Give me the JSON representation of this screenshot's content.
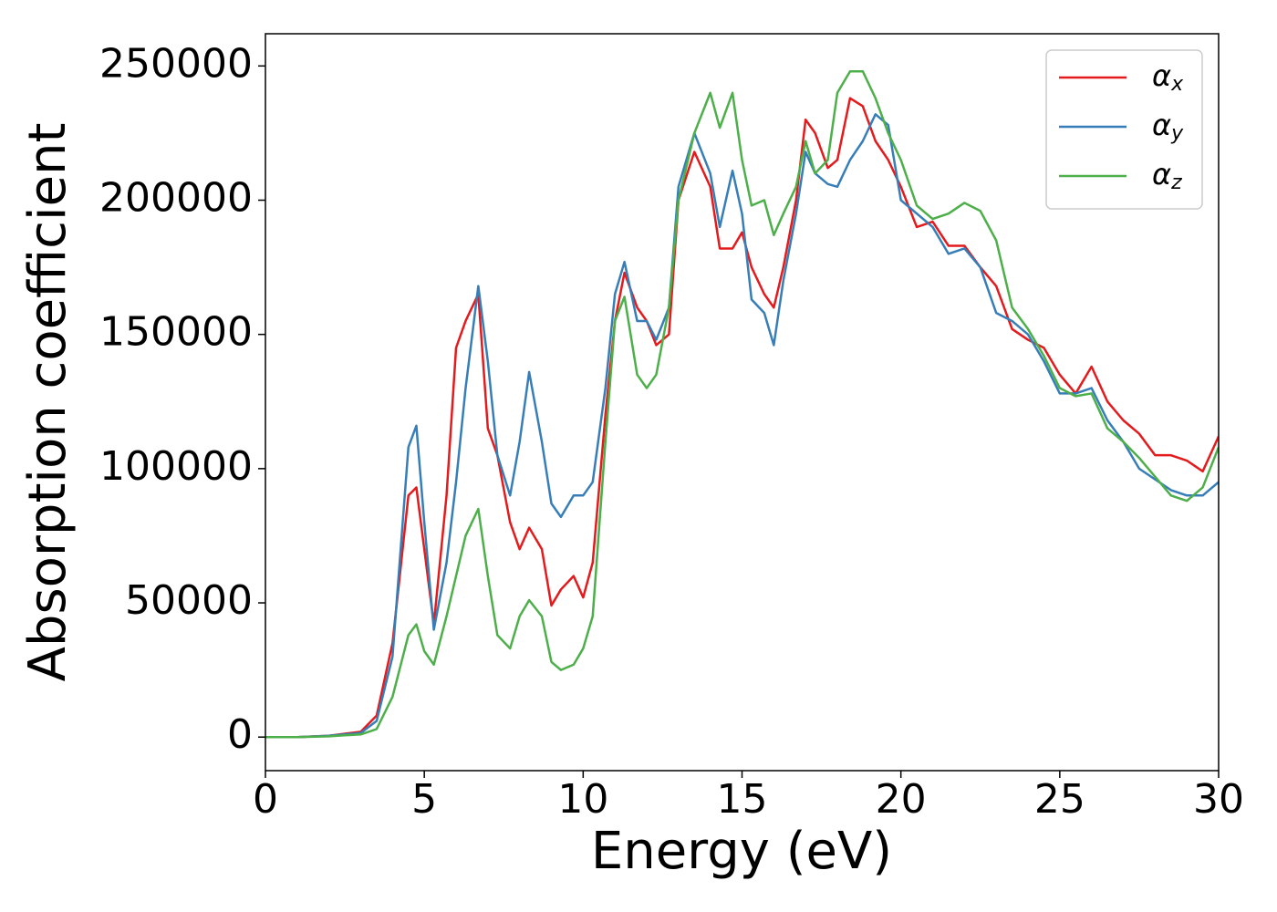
{
  "chart_data": {
    "type": "line",
    "xlabel": "Energy (eV)",
    "ylabel": "Absorption coefficient",
    "x": [
      0,
      1,
      2,
      3,
      3.5,
      4,
      4.5,
      4.75,
      5,
      5.3,
      5.7,
      6,
      6.3,
      6.7,
      7,
      7.3,
      7.7,
      8,
      8.3,
      8.7,
      9,
      9.3,
      9.7,
      10,
      10.3,
      10.7,
      11,
      11.3,
      11.7,
      12,
      12.3,
      12.7,
      13,
      13.5,
      14,
      14.3,
      14.7,
      15,
      15.3,
      15.7,
      16,
      16.3,
      16.7,
      17,
      17.3,
      17.7,
      18,
      18.4,
      18.8,
      19.2,
      19.6,
      20,
      20.5,
      21,
      21.5,
      22,
      22.5,
      23,
      23.5,
      24,
      24.5,
      25,
      25.5,
      26,
      26.5,
      27,
      27.5,
      28,
      28.5,
      29,
      29.5,
      30
    ],
    "series": [
      {
        "name": "αx",
        "color": "#e41a1c",
        "values": [
          0,
          0,
          500,
          2000,
          8000,
          35000,
          90000,
          93000,
          70000,
          42000,
          90000,
          145000,
          155000,
          165000,
          115000,
          105000,
          80000,
          70000,
          78000,
          70000,
          49000,
          55000,
          60000,
          52000,
          65000,
          120000,
          155000,
          173000,
          160000,
          155000,
          146000,
          150000,
          200000,
          218000,
          205000,
          182000,
          182000,
          188000,
          175000,
          165000,
          160000,
          175000,
          200000,
          230000,
          225000,
          212000,
          215000,
          238000,
          235000,
          222000,
          215000,
          205000,
          190000,
          192000,
          183000,
          183000,
          175000,
          168000,
          152000,
          148000,
          145000,
          135000,
          128000,
          138000,
          125000,
          118000,
          113000,
          105000,
          105000,
          103000,
          99000,
          112000
        ]
      },
      {
        "name": "αy",
        "color": "#377eb8",
        "values": [
          0,
          0,
          500,
          1500,
          6000,
          30000,
          108000,
          116000,
          80000,
          40000,
          65000,
          95000,
          130000,
          168000,
          140000,
          105000,
          90000,
          110000,
          136000,
          110000,
          87000,
          82000,
          90000,
          90000,
          95000,
          130000,
          165000,
          177000,
          155000,
          155000,
          148000,
          160000,
          205000,
          225000,
          210000,
          190000,
          211000,
          195000,
          163000,
          158000,
          146000,
          170000,
          195000,
          218000,
          210000,
          206000,
          205000,
          215000,
          222000,
          232000,
          228000,
          200000,
          195000,
          190000,
          180000,
          182000,
          175000,
          158000,
          155000,
          150000,
          140000,
          128000,
          128000,
          130000,
          118000,
          110000,
          100000,
          96000,
          92000,
          90000,
          90000,
          95000
        ]
      },
      {
        "name": "αz",
        "color": "#4daf4a",
        "values": [
          0,
          0,
          300,
          1000,
          3000,
          15000,
          38000,
          42000,
          32000,
          27000,
          45000,
          60000,
          75000,
          85000,
          60000,
          38000,
          33000,
          45000,
          51000,
          45000,
          28000,
          25000,
          27000,
          33000,
          45000,
          110000,
          155000,
          164000,
          135000,
          130000,
          135000,
          160000,
          200000,
          225000,
          240000,
          227000,
          240000,
          215000,
          198000,
          200000,
          187000,
          195000,
          205000,
          222000,
          210000,
          215000,
          240000,
          248000,
          248000,
          238000,
          225000,
          215000,
          198000,
          193000,
          195000,
          199000,
          196000,
          185000,
          160000,
          152000,
          142000,
          130000,
          127000,
          128000,
          115000,
          110000,
          104000,
          97000,
          90000,
          88000,
          93000,
          108000
        ]
      }
    ],
    "xlim": [
      0,
      30
    ],
    "xticks": [
      0,
      5,
      10,
      15,
      20,
      25,
      30
    ],
    "ylim": [
      -12500,
      262000
    ],
    "yticks": [
      0,
      50000,
      100000,
      150000,
      200000,
      250000
    ],
    "grid": false,
    "legend": "upper right"
  }
}
